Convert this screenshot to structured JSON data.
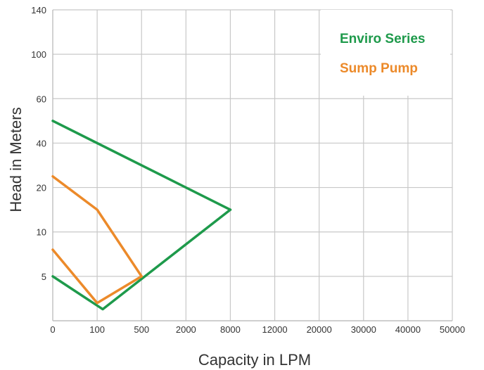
{
  "chart_data": {
    "type": "line",
    "xlabel": "Capacity in LPM",
    "ylabel": "Head in Meters",
    "x_tick_labels": [
      "0",
      "100",
      "500",
      "2000",
      "8000",
      "12000",
      "20000",
      "30000",
      "40000",
      "50000"
    ],
    "y_tick_labels": [
      "5",
      "10",
      "20",
      "40",
      "60",
      "100",
      "140"
    ],
    "grid": true,
    "legend_position": "top-right",
    "legend": [
      {
        "label": "Enviro Series",
        "color": "#1e9a4b"
      },
      {
        "label": "Sump Pump",
        "color": "#ec8a2a"
      }
    ],
    "series": [
      {
        "name": "Enviro Series",
        "color": "#1e9a4b",
        "segments": [
          [
            [
              0,
              50
            ],
            [
              8000,
              15
            ]
          ],
          [
            [
              0,
              5
            ],
            [
              150,
              1.3
            ],
            [
              8000,
              15
            ]
          ]
        ]
      },
      {
        "name": "Sump Pump",
        "color": "#ec8a2a",
        "segments": [
          [
            [
              0,
              25
            ],
            [
              100,
              15
            ],
            [
              500,
              5
            ]
          ],
          [
            [
              0,
              8
            ],
            [
              100,
              2
            ],
            [
              500,
              5
            ]
          ]
        ]
      }
    ]
  }
}
